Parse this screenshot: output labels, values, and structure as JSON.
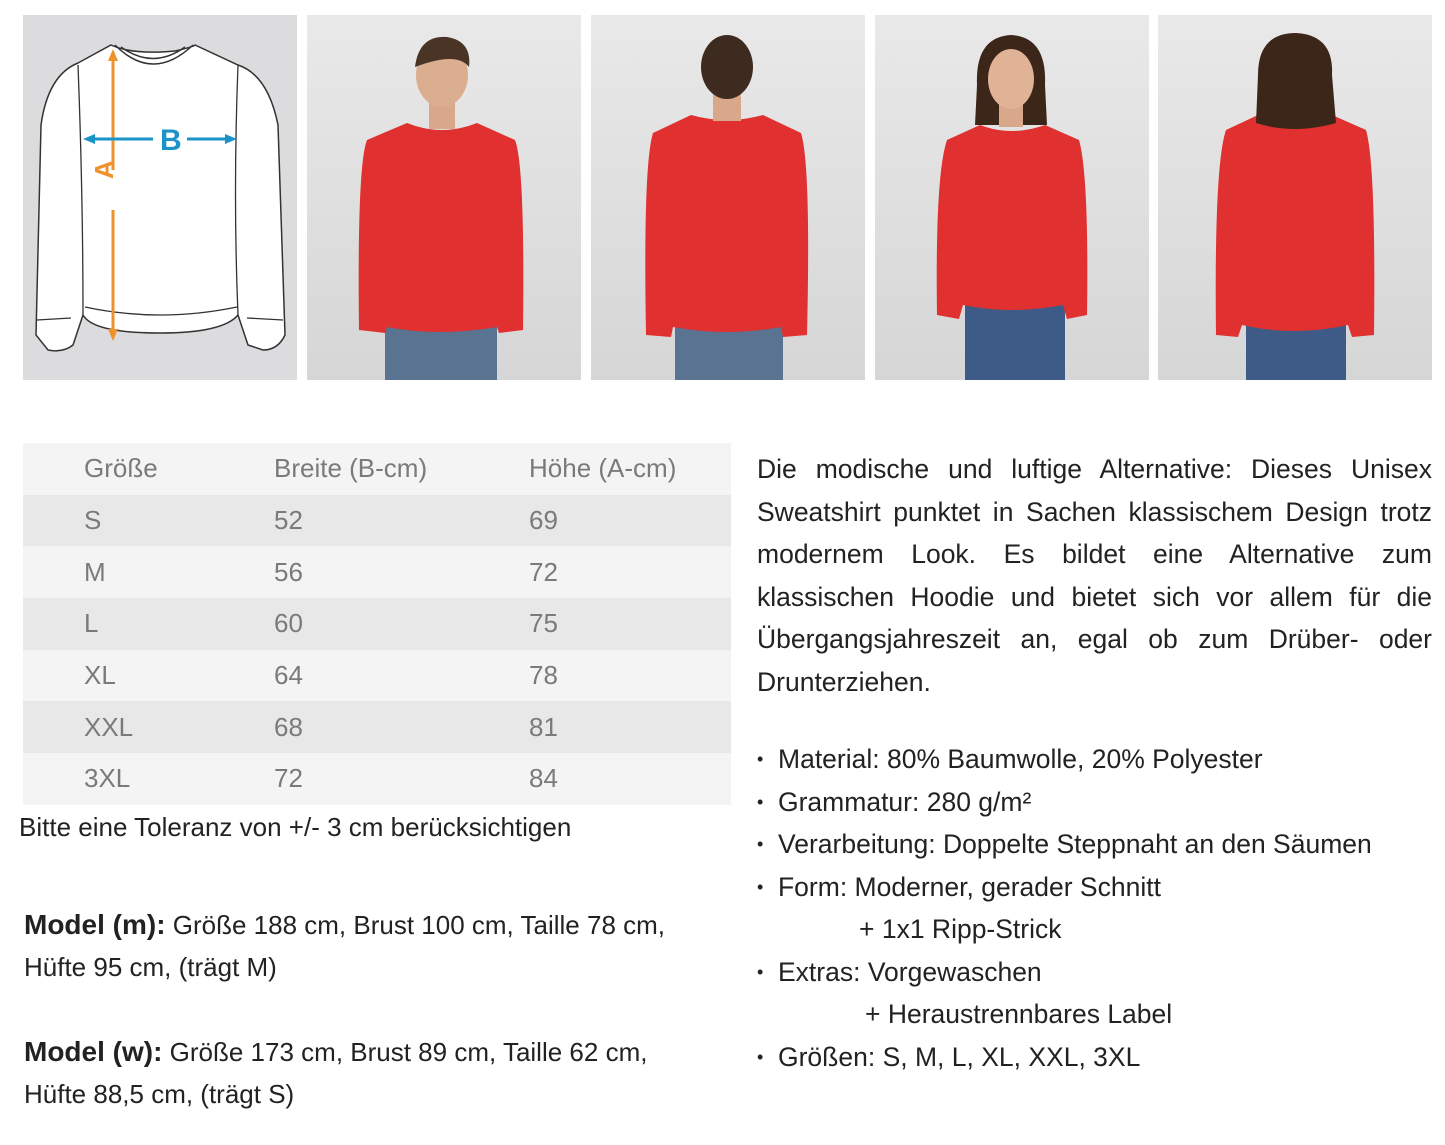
{
  "diagram": {
    "label_a": "A",
    "label_b": "B",
    "color_a": "#f0922c",
    "color_b": "#1a94c8"
  },
  "photos": [
    {
      "view": "man-front",
      "garment_color": "#e0302f"
    },
    {
      "view": "man-back",
      "garment_color": "#e0302f"
    },
    {
      "view": "woman-front",
      "garment_color": "#e0302f"
    },
    {
      "view": "woman-back",
      "garment_color": "#e0302f"
    }
  ],
  "size_table": {
    "headers": [
      "Größe",
      "Breite (B-cm)",
      "Höhe (A-cm)"
    ],
    "rows": [
      [
        "S",
        "52",
        "69"
      ],
      [
        "M",
        "56",
        "72"
      ],
      [
        "L",
        "60",
        "75"
      ],
      [
        "XL",
        "64",
        "78"
      ],
      [
        "XXL",
        "68",
        "81"
      ],
      [
        "3XL",
        "72",
        "84"
      ]
    ]
  },
  "tolerance": "Bitte eine Toleranz von +/- 3 cm berücksichtigen",
  "model_m": {
    "label": "Model (m):",
    "line1": " Größe 188 cm, Brust 100 cm, Taille 78 cm,",
    "line2": "Hüfte 95 cm, (trägt M)"
  },
  "model_w": {
    "label": "Model (w):",
    "line1": " Größe 173 cm, Brust 89 cm, Taille 62 cm,",
    "line2": "Hüfte 88,5 cm, (trägt S)"
  },
  "description": "Die modische und luftige Alternative: Dieses Unisex Sweatshirt punktet in Sachen klassischem Design trotz modernem Look. Es bildet eine Alternative zum klassischen Hoodie und bietet sich vor allem für die Übergangsjahreszeit an, egal ob zum Drüber- oder Drunterziehen.",
  "features": [
    {
      "text": "Material: 80% Baumwolle, 20% Polyester"
    },
    {
      "text": "Grammatur: 280 g/m²"
    },
    {
      "text": "Verarbeitung: Doppelte Steppnaht an den Säumen"
    },
    {
      "text": "Form: Moderner, gerader Schnitt"
    },
    {
      "text": "+ 1x1 Ripp-Strick"
    },
    {
      "text": "Extras: Vorgewaschen"
    },
    {
      "text": "+ Heraustrennbares Label"
    },
    {
      "text": "Größen:  S, M, L, XL, XXL, 3XL"
    }
  ]
}
